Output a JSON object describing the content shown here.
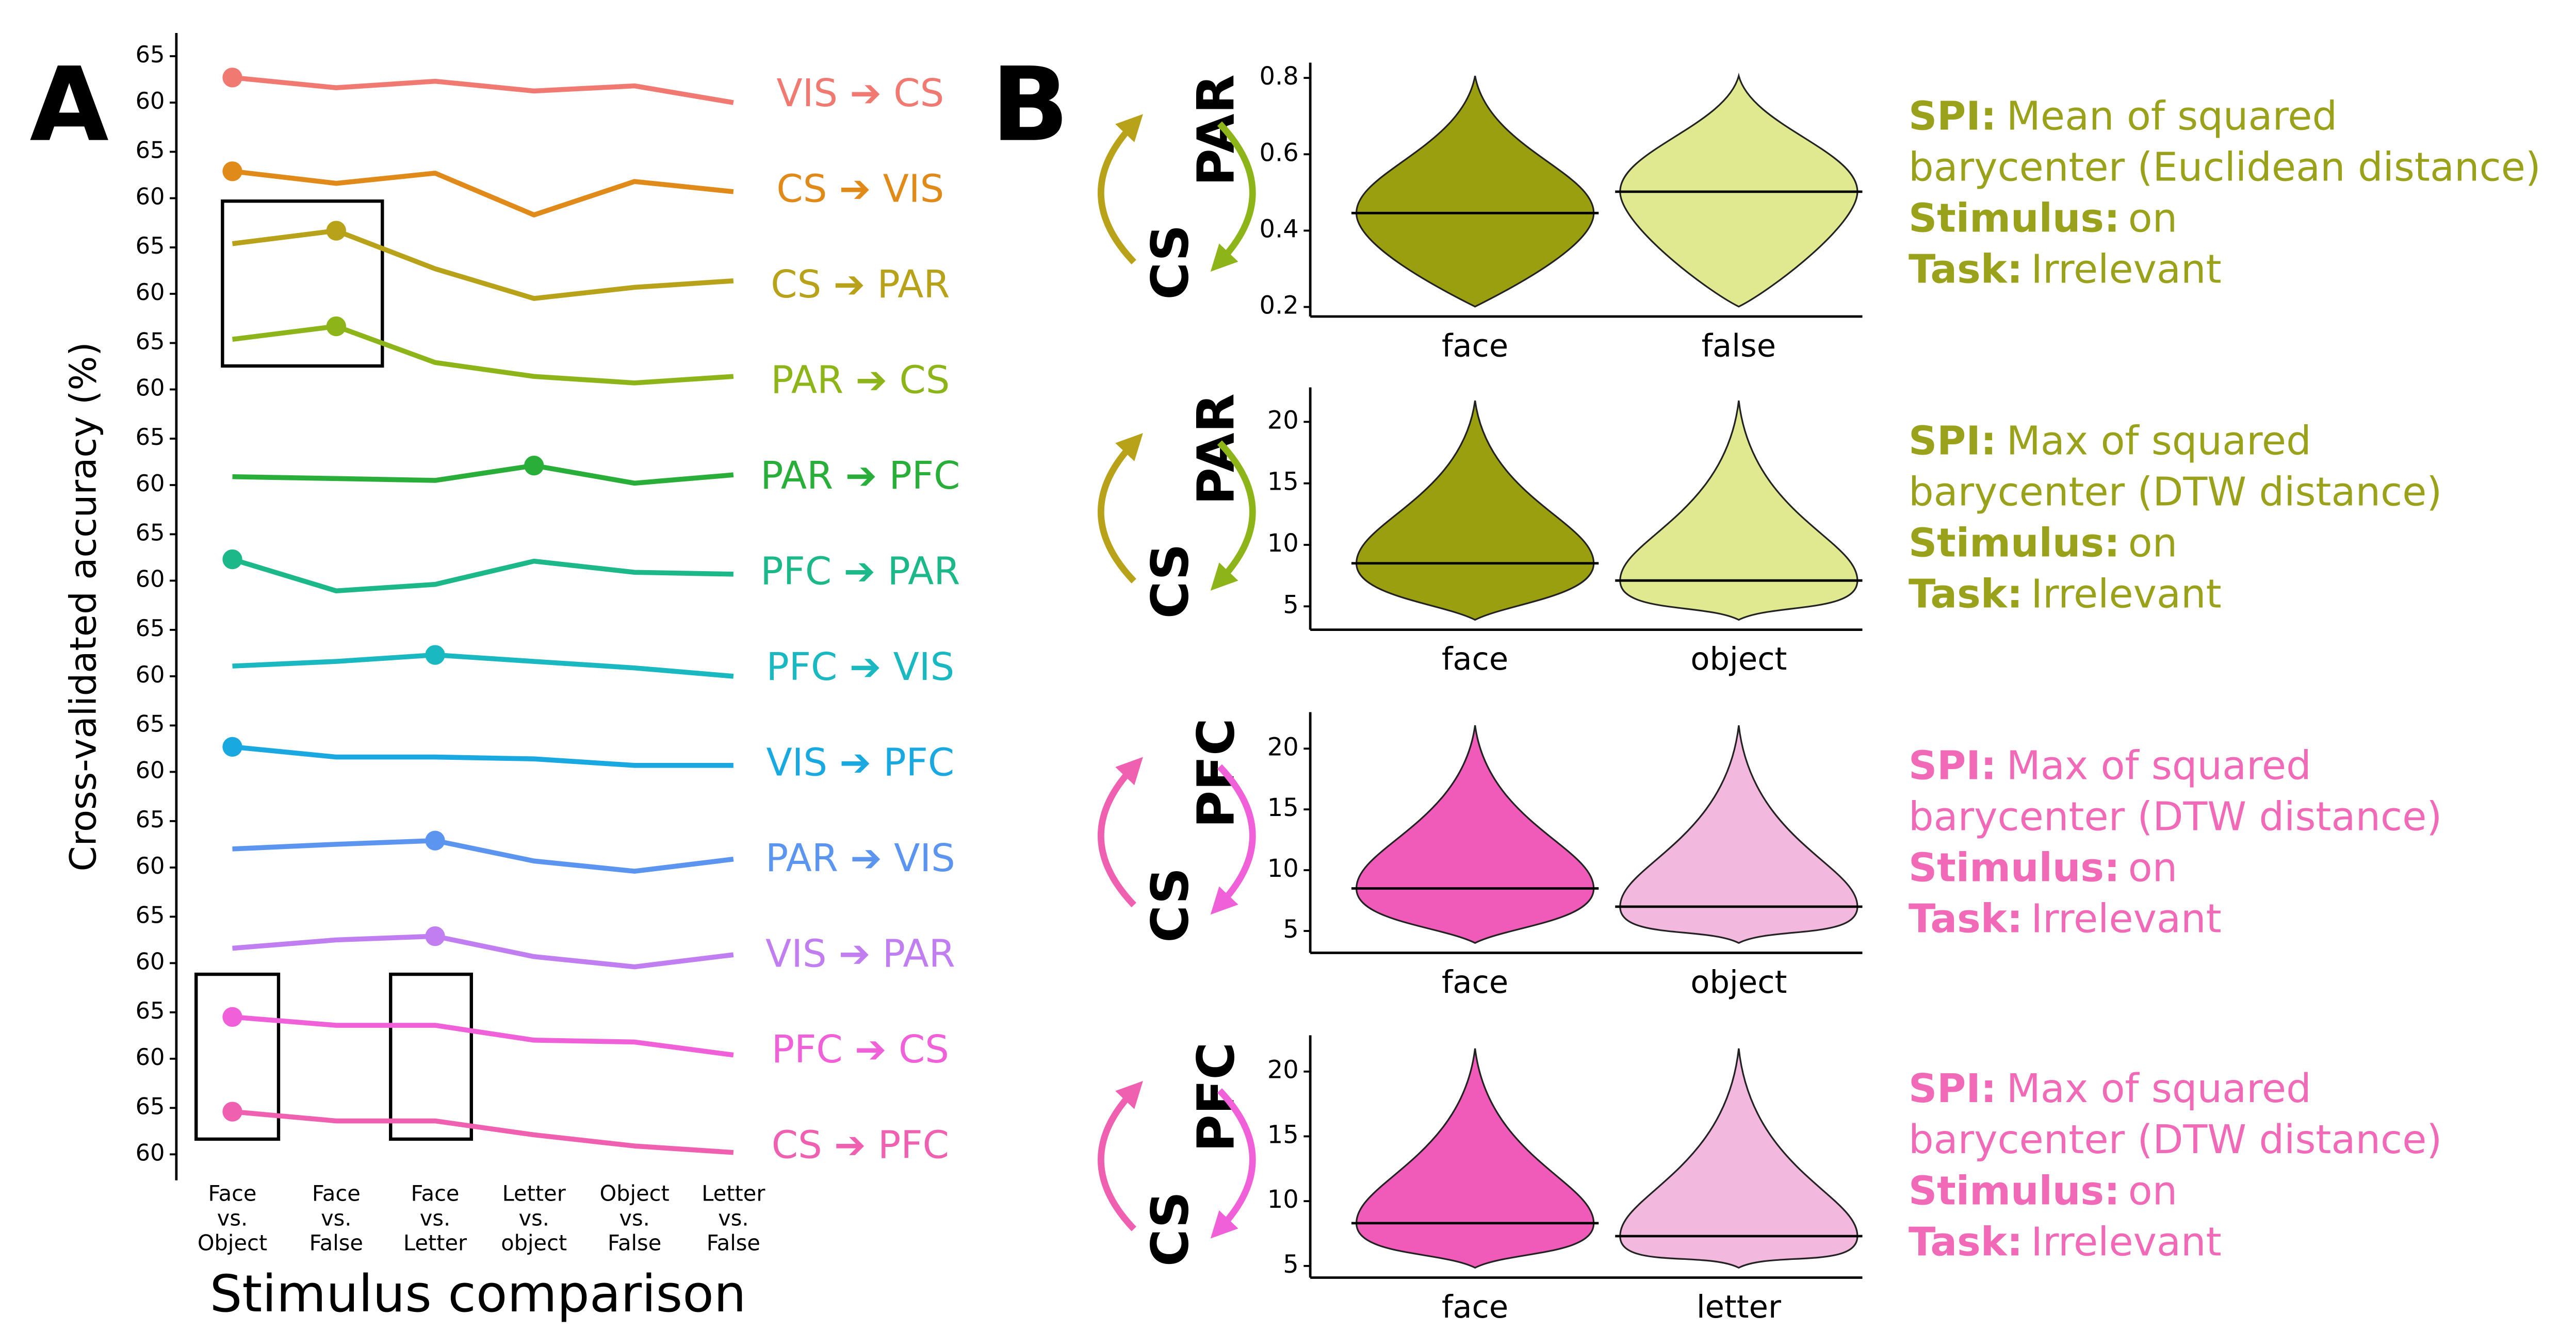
{
  "panel_labels": [
    "A",
    "B"
  ],
  "chart_data": [
    {
      "type": "line",
      "ylabel": "Cross-validated accuracy (%)",
      "xlabel": "Stimulus comparison",
      "categories": [
        [
          "Face",
          "vs.",
          "Object"
        ],
        [
          "Face",
          "vs.",
          "False"
        ],
        [
          "Face",
          "vs.",
          "Letter"
        ],
        [
          "Letter",
          "vs.",
          "object"
        ],
        [
          "Object",
          "vs.",
          "False"
        ],
        [
          "Letter",
          "vs.",
          "False"
        ]
      ],
      "ylim": [
        57.2,
        67.5
      ],
      "yticks": [
        60,
        65
      ],
      "series": [
        {
          "name": "VIS ➔ CS",
          "color": "#f07a72",
          "highlight": 0,
          "values": [
            62.7,
            61.6,
            62.3,
            61.25,
            61.8,
            60.0
          ]
        },
        {
          "name": "CS ➔ VIS",
          "color": "#e08a1a",
          "highlight": 0,
          "values": [
            62.9,
            61.6,
            62.7,
            58.2,
            61.8,
            60.7
          ]
        },
        {
          "name": "CS ➔ PAR",
          "color": "#b8a21a",
          "highlight": 1,
          "values": [
            65.4,
            66.8,
            62.7,
            59.5,
            60.7,
            61.4
          ]
        },
        {
          "name": "PAR ➔ CS",
          "color": "#8db51a",
          "highlight": 1,
          "values": [
            65.4,
            66.8,
            62.9,
            61.4,
            60.7,
            61.4
          ]
        },
        {
          "name": "PAR ➔ PFC",
          "color": "#2aae3a",
          "highlight": 3,
          "values": [
            60.9,
            60.7,
            60.5,
            62.1,
            60.2,
            61.1
          ]
        },
        {
          "name": "PFC ➔ PAR",
          "color": "#1db88a",
          "highlight": 0,
          "values": [
            62.3,
            58.9,
            59.6,
            62.1,
            60.9,
            60.7
          ]
        },
        {
          "name": "PFC ➔ VIS",
          "color": "#1ab8c0",
          "highlight": 2,
          "values": [
            61.1,
            61.6,
            62.3,
            61.6,
            60.9,
            60.0
          ]
        },
        {
          "name": "VIS ➔ PFC",
          "color": "#1aa8e0",
          "highlight": 0,
          "values": [
            62.7,
            61.6,
            61.6,
            61.4,
            60.7,
            60.7
          ]
        },
        {
          "name": "PAR ➔ VIS",
          "color": "#5b95f0",
          "highlight": 2,
          "values": [
            62.0,
            62.5,
            62.9,
            60.7,
            59.6,
            60.9
          ]
        },
        {
          "name": "VIS ➔ PAR",
          "color": "#c07ef0",
          "highlight": 2,
          "values": [
            61.6,
            62.5,
            62.9,
            60.7,
            59.6,
            60.9
          ]
        },
        {
          "name": "PFC ➔ CS",
          "color": "#f060d8",
          "highlight": 0,
          "values": [
            64.5,
            63.6,
            63.6,
            62.0,
            61.8,
            60.4
          ]
        },
        {
          "name": "CS ➔ PFC",
          "color": "#f060b0",
          "highlight": 0,
          "values": [
            64.6,
            63.6,
            63.6,
            62.1,
            60.9,
            60.2
          ]
        }
      ]
    },
    {
      "type": "violin",
      "pair": [
        "CS",
        "PAR"
      ],
      "arrow_colors": [
        "#b8a21a",
        "#8db51a"
      ],
      "colors": [
        "#9a9f10",
        "#e0e890"
      ],
      "text_color": "#9aa11a",
      "categories": [
        "face",
        "false"
      ],
      "values": [
        0.446,
        0.502
      ],
      "ylim": [
        0.175,
        0.84
      ],
      "yticks": [
        0.2,
        0.4,
        0.6,
        0.8
      ],
      "annotation": {
        "spi_label": "SPI:",
        "spi_lines": [
          "Mean of squared",
          "barycenter (Euclidean distance)"
        ],
        "stimulus_label": "Stimulus:",
        "stimulus": "on",
        "task_label": "Task:",
        "task": "Irrelevant"
      }
    },
    {
      "type": "violin",
      "pair": [
        "CS",
        "PAR"
      ],
      "arrow_colors": [
        "#b8a21a",
        "#8db51a"
      ],
      "colors": [
        "#9a9f10",
        "#e0e890"
      ],
      "text_color": "#9aa11a",
      "categories": [
        "face",
        "object"
      ],
      "values": [
        8.5,
        7.1
      ],
      "ylim": [
        3.1,
        22.8
      ],
      "yticks": [
        5,
        10,
        15,
        20
      ],
      "annotation": {
        "spi_label": "SPI:",
        "spi_lines": [
          "Max of squared",
          "barycenter (DTW distance)"
        ],
        "stimulus_label": "Stimulus:",
        "stimulus": "on",
        "task_label": "Task:",
        "task": "Irrelevant"
      }
    },
    {
      "type": "violin",
      "pair": [
        "CS",
        "PFC"
      ],
      "arrow_colors": [
        "#f060b0",
        "#f060d8"
      ],
      "colors": [
        "#f05ab8",
        "#f3b8dd"
      ],
      "text_color": "#f06ab8",
      "categories": [
        "face",
        "object"
      ],
      "values": [
        8.5,
        7.0
      ],
      "ylim": [
        3.2,
        23.0
      ],
      "yticks": [
        5,
        10,
        15,
        20
      ],
      "annotation": {
        "spi_label": "SPI:",
        "spi_lines": [
          "Max of squared",
          "barycenter (DTW distance)"
        ],
        "stimulus_label": "Stimulus:",
        "stimulus": "on",
        "task_label": "Task:",
        "task": "Irrelevant"
      }
    },
    {
      "type": "violin",
      "pair": [
        "CS",
        "PFC"
      ],
      "arrow_colors": [
        "#f060b0",
        "#f060d8"
      ],
      "colors": [
        "#f05ab8",
        "#f3b8dd"
      ],
      "text_color": "#f06ab8",
      "categories": [
        "face",
        "letter"
      ],
      "values": [
        8.3,
        7.3
      ],
      "ylim": [
        4.1,
        22.8
      ],
      "yticks": [
        5,
        10,
        15,
        20
      ],
      "annotation": {
        "spi_label": "SPI:",
        "spi_lines": [
          "Max of squared",
          "barycenter (DTW distance)"
        ],
        "stimulus_label": "Stimulus:",
        "stimulus": "on",
        "task_label": "Task:",
        "task": "Irrelevant"
      }
    }
  ]
}
